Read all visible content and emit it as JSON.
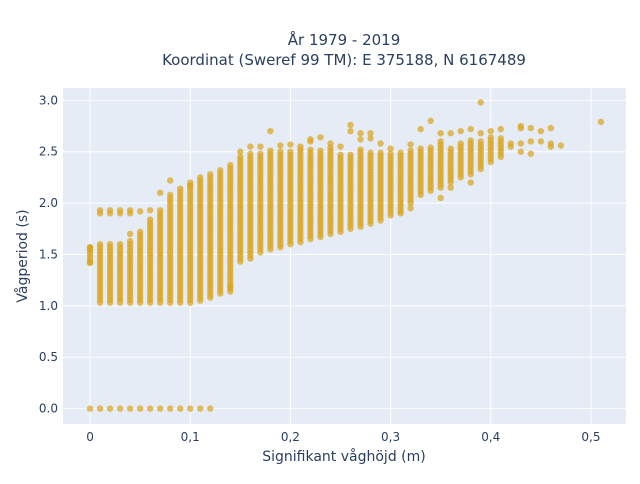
{
  "chart_data": {
    "type": "scatter",
    "title": [
      "År 1979 - 2019",
      "Koordinat (Sweref 99 TM): E 375188, N 6167489"
    ],
    "xlabel": "Signifikant våghöjd (m)",
    "ylabel": "Vågperiod (s)",
    "xlim": [
      -0.027,
      0.535
    ],
    "ylim": [
      -0.15,
      3.12
    ],
    "xticks": [
      0,
      0.1,
      0.2,
      0.3,
      0.4,
      0.5
    ],
    "xtick_labels": [
      "0",
      "0,1",
      "0,2",
      "0,3",
      "0,4",
      "0,5"
    ],
    "yticks": [
      0,
      0.5,
      1,
      1.5,
      2,
      2.5,
      3
    ],
    "ytick_labels": [
      "0.0",
      "0.5",
      "1.0",
      "1.5",
      "2.0",
      "2.5",
      "3.0"
    ],
    "grid": true,
    "legend": "none",
    "marker_color": "#DAA520",
    "plot_background": "#E5ECF6",
    "columns": [
      {
        "x": 0.0,
        "ymin": 1.42,
        "ymax": 1.57,
        "extra": [
          0.0,
          1.42,
          1.55,
          1.57
        ]
      },
      {
        "x": 0.01,
        "ymin": 1.03,
        "ymax": 1.62,
        "extra": [
          0.0,
          1.9,
          1.93
        ]
      },
      {
        "x": 0.02,
        "ymin": 1.03,
        "ymax": 1.62,
        "extra": [
          0.0,
          1.9,
          1.93
        ]
      },
      {
        "x": 0.03,
        "ymin": 1.03,
        "ymax": 1.62,
        "extra": [
          0.0,
          1.9,
          1.93
        ]
      },
      {
        "x": 0.04,
        "ymin": 1.03,
        "ymax": 1.65,
        "extra": [
          0.0,
          1.7,
          1.9,
          1.93
        ]
      },
      {
        "x": 0.05,
        "ymin": 1.03,
        "ymax": 1.72,
        "extra": [
          0.0,
          1.92
        ]
      },
      {
        "x": 0.06,
        "ymin": 1.03,
        "ymax": 1.85,
        "extra": [
          0.0,
          1.93
        ]
      },
      {
        "x": 0.07,
        "ymin": 1.03,
        "ymax": 1.95,
        "extra": [
          0.0,
          2.1
        ]
      },
      {
        "x": 0.08,
        "ymin": 1.03,
        "ymax": 2.1,
        "extra": [
          0.0,
          2.22
        ]
      },
      {
        "x": 0.09,
        "ymin": 1.03,
        "ymax": 2.15,
        "extra": [
          0.0
        ]
      },
      {
        "x": 0.1,
        "ymin": 1.03,
        "ymax": 2.2,
        "extra": [
          0.0,
          2.17
        ]
      },
      {
        "x": 0.11,
        "ymin": 1.05,
        "ymax": 2.26,
        "extra": [
          0.0
        ]
      },
      {
        "x": 0.12,
        "ymin": 1.08,
        "ymax": 2.3,
        "extra": [
          0.0
        ]
      },
      {
        "x": 0.13,
        "ymin": 1.12,
        "ymax": 2.34,
        "extra": []
      },
      {
        "x": 0.14,
        "ymin": 1.14,
        "ymax": 2.37,
        "extra": [
          1.18
        ]
      },
      {
        "x": 0.15,
        "ymin": 1.43,
        "ymax": 2.45,
        "extra": [
          2.5
        ]
      },
      {
        "x": 0.16,
        "ymin": 1.46,
        "ymax": 2.5,
        "extra": [
          2.55
        ]
      },
      {
        "x": 0.17,
        "ymin": 1.52,
        "ymax": 2.5,
        "extra": [
          2.55
        ]
      },
      {
        "x": 0.18,
        "ymin": 1.55,
        "ymax": 2.52,
        "extra": [
          2.7
        ]
      },
      {
        "x": 0.19,
        "ymin": 1.57,
        "ymax": 2.52,
        "extra": [
          2.56
        ]
      },
      {
        "x": 0.2,
        "ymin": 1.6,
        "ymax": 2.52,
        "extra": [
          2.57
        ]
      },
      {
        "x": 0.21,
        "ymin": 1.62,
        "ymax": 2.52,
        "extra": [
          2.55
        ]
      },
      {
        "x": 0.22,
        "ymin": 1.65,
        "ymax": 2.52,
        "extra": [
          2.6,
          2.62
        ]
      },
      {
        "x": 0.23,
        "ymin": 1.67,
        "ymax": 2.52,
        "extra": [
          2.64
        ]
      },
      {
        "x": 0.24,
        "ymin": 1.7,
        "ymax": 2.55,
        "extra": [
          2.58
        ]
      },
      {
        "x": 0.25,
        "ymin": 1.72,
        "ymax": 2.48,
        "extra": [
          2.55
        ]
      },
      {
        "x": 0.26,
        "ymin": 1.75,
        "ymax": 2.48,
        "extra": [
          2.7,
          2.76
        ]
      },
      {
        "x": 0.27,
        "ymin": 1.77,
        "ymax": 2.52,
        "extra": [
          2.62,
          2.68
        ]
      },
      {
        "x": 0.28,
        "ymin": 1.8,
        "ymax": 2.5,
        "extra": [
          2.63,
          2.68
        ]
      },
      {
        "x": 0.29,
        "ymin": 1.83,
        "ymax": 2.5,
        "extra": [
          2.58
        ]
      },
      {
        "x": 0.3,
        "ymin": 1.88,
        "ymax": 2.48,
        "extra": [
          2.53
        ]
      },
      {
        "x": 0.31,
        "ymin": 1.92,
        "ymax": 2.5,
        "extra": [
          1.9
        ]
      },
      {
        "x": 0.32,
        "ymin": 2.0,
        "ymax": 2.52,
        "extra": [
          1.95,
          2.57
        ]
      },
      {
        "x": 0.33,
        "ymin": 2.08,
        "ymax": 2.55,
        "extra": [
          2.72
        ]
      },
      {
        "x": 0.34,
        "ymin": 2.12,
        "ymax": 2.55,
        "extra": [
          2.8
        ]
      },
      {
        "x": 0.35,
        "ymin": 2.15,
        "ymax": 2.6,
        "extra": [
          2.05,
          2.68
        ]
      },
      {
        "x": 0.36,
        "ymin": 2.2,
        "ymax": 2.55,
        "extra": [
          2.15,
          2.68
        ]
      },
      {
        "x": 0.37,
        "ymin": 2.25,
        "ymax": 2.6,
        "extra": [
          2.7
        ]
      },
      {
        "x": 0.38,
        "ymin": 2.28,
        "ymax": 2.62,
        "extra": [
          2.2,
          2.72
        ]
      },
      {
        "x": 0.39,
        "ymin": 2.33,
        "ymax": 2.62,
        "extra": [
          2.68,
          2.98
        ]
      },
      {
        "x": 0.4,
        "ymin": 2.4,
        "ymax": 2.65,
        "extra": [
          2.7
        ]
      },
      {
        "x": 0.41,
        "ymin": 2.45,
        "ymax": 2.65,
        "extra": [
          2.72
        ]
      },
      {
        "x": 0.42,
        "ymin": 2.55,
        "ymax": 2.6,
        "extra": []
      },
      {
        "x": 0.43,
        "ymin": 2.58,
        "ymax": 2.6,
        "extra": [
          2.5,
          2.73,
          2.75
        ]
      },
      {
        "x": 0.44,
        "ymin": 2.6,
        "ymax": 2.62,
        "extra": [
          2.48,
          2.73
        ]
      },
      {
        "x": 0.45,
        "ymin": 2.6,
        "ymax": 2.62,
        "extra": [
          2.7
        ]
      },
      {
        "x": 0.46,
        "ymin": 2.55,
        "ymax": 2.6,
        "extra": [
          2.73
        ]
      },
      {
        "x": 0.47,
        "ymin": 2.56,
        "ymax": 2.56,
        "extra": []
      },
      {
        "x": 0.51,
        "ymin": 2.79,
        "ymax": 2.79,
        "extra": []
      }
    ]
  }
}
